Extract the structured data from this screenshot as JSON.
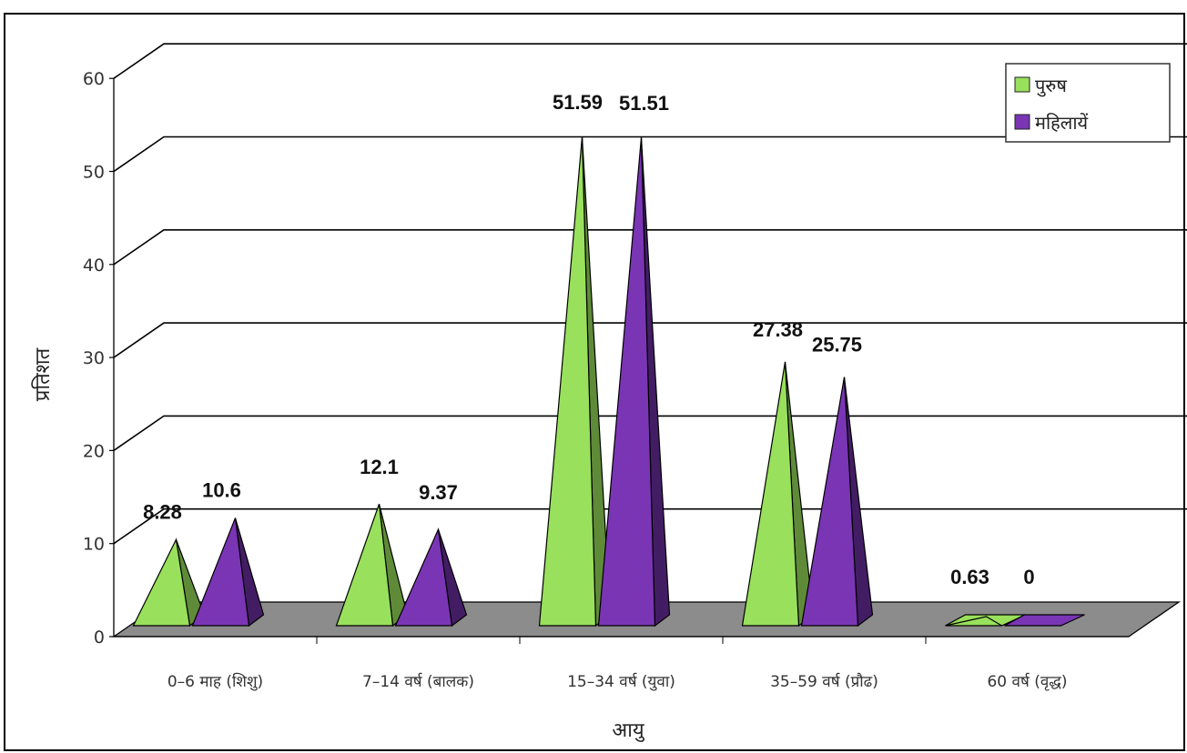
{
  "chart_data": {
    "type": "bar",
    "style": "3d-pyramid",
    "categories": [
      "0–6 माह (शिशु)",
      "7–14 वर्ष (बालक)",
      "15–34 वर्ष (युवा)",
      "35–59 वर्ष (प्रौढ)",
      "60 वर्ष (वृद्ध)"
    ],
    "series": [
      {
        "name": "पुरुष",
        "values": [
          8.28,
          12.1,
          51.59,
          27.38,
          0.63
        ],
        "labels": [
          "8.28",
          "12.1",
          "51.59",
          "27.38",
          "0.63"
        ],
        "color": "#99e05c"
      },
      {
        "name": "महिलायें",
        "values": [
          10.6,
          9.37,
          51.51,
          25.75,
          0
        ],
        "labels": [
          "10.6",
          "9.37",
          "51.51",
          "25.75",
          "0"
        ],
        "color": "#7a35b5"
      }
    ],
    "xlabel": "आयु",
    "ylabel": "प्रतिशत",
    "ylim": [
      0,
      60
    ],
    "yticks": [
      "0",
      "10",
      "20",
      "30",
      "40",
      "50",
      "60"
    ],
    "grid": true,
    "legend_position": "top-right",
    "floor_color": "#8c8c8c"
  }
}
